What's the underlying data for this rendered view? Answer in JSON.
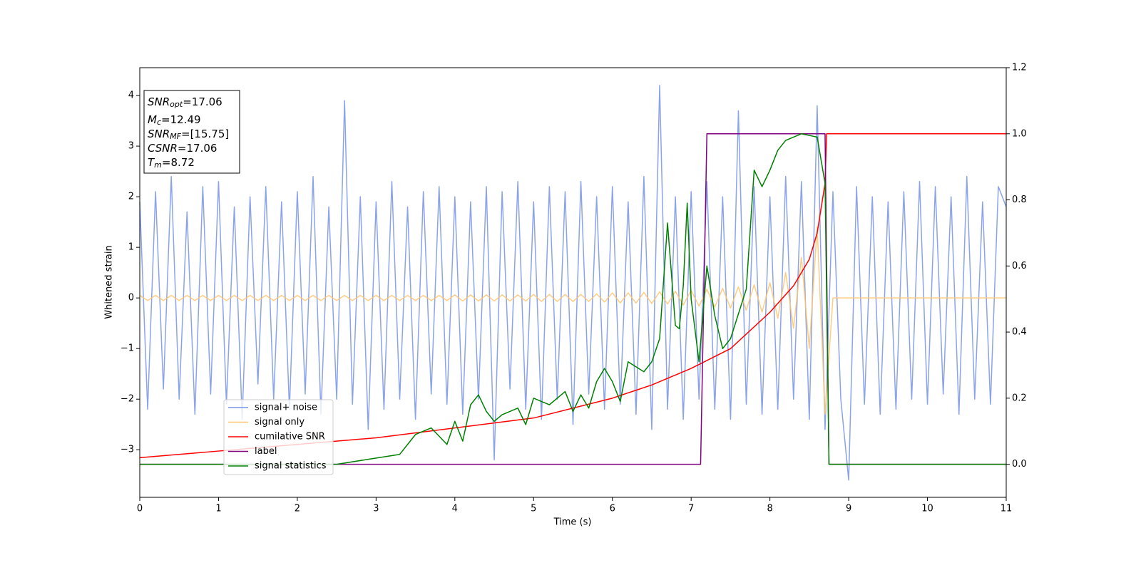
{
  "chart_data": {
    "type": "line",
    "xlabel": "Time (s)",
    "ylabel": "Whitened strain",
    "xlim": [
      0,
      11
    ],
    "xticks": [
      0,
      1,
      2,
      3,
      4,
      5,
      6,
      7,
      8,
      9,
      10,
      11
    ],
    "ylim": [
      -3.94,
      4.55
    ],
    "yticks": [
      {
        "value": -3,
        "label": "−3"
      },
      {
        "value": -2,
        "label": "−2"
      },
      {
        "value": -1,
        "label": "−1"
      },
      0,
      1,
      2,
      3,
      4
    ],
    "y2lim": [
      -0.1,
      1.2
    ],
    "y2ticks": [
      {
        "value": 0,
        "label": "0.0"
      },
      0.2,
      0.4,
      0.6,
      0.8,
      {
        "value": 1,
        "label": "1.0"
      },
      1.2
    ],
    "legend": "lower left",
    "annotations": [
      {
        "text": "SNR",
        "sub": "opt",
        "value": "=17.06"
      },
      {
        "text": "M",
        "sub": "c",
        "value": "=12.49"
      },
      {
        "text": "SNR",
        "sub": "MF",
        "value": "=[15.75]"
      },
      {
        "text": "CSNR",
        "value": "=17.06"
      },
      {
        "text": "T",
        "sub": "m",
        "value": "=8.72"
      }
    ],
    "x": [
      0,
      0.1,
      0.2,
      0.3,
      0.4,
      0.5,
      0.6,
      0.7,
      0.8,
      0.9,
      1,
      1.1,
      1.2,
      1.3,
      1.4,
      1.5,
      1.6,
      1.7,
      1.8,
      1.9,
      2,
      2.1,
      2.2,
      2.3,
      2.4,
      2.5,
      2.6,
      2.7,
      2.8,
      2.9,
      3,
      3.1,
      3.2,
      3.3,
      3.4,
      3.5,
      3.6,
      3.7,
      3.8,
      3.9,
      4,
      4.1,
      4.2,
      4.3,
      4.4,
      4.5,
      4.6,
      4.7,
      4.8,
      4.9,
      5,
      5.1,
      5.2,
      5.3,
      5.4,
      5.5,
      5.6,
      5.7,
      5.8,
      5.9,
      6,
      6.1,
      6.2,
      6.3,
      6.4,
      6.5,
      6.6,
      6.7,
      6.8,
      6.9,
      7,
      7.1,
      7.2,
      7.3,
      7.4,
      7.5,
      7.6,
      7.7,
      7.8,
      7.9,
      8,
      8.1,
      8.2,
      8.3,
      8.4,
      8.5,
      8.6,
      8.7,
      8.8,
      8.9,
      9,
      9.1,
      9.2,
      9.3,
      9.4,
      9.5,
      9.6,
      9.7,
      9.8,
      9.9,
      10,
      10.1,
      10.2,
      10.3,
      10.4,
      10.5,
      10.6,
      10.7,
      10.8,
      10.9,
      11
    ],
    "series": [
      {
        "name": "signal+ noise",
        "color": "#7793e8",
        "values": [
          1.9,
          -2.2,
          2.1,
          -1.8,
          2.4,
          -2.0,
          1.7,
          -2.3,
          2.2,
          -1.9,
          2.3,
          -2.1,
          1.8,
          -2.4,
          2.0,
          -1.7,
          2.2,
          -2.0,
          1.9,
          -2.2,
          2.1,
          -1.9,
          2.4,
          -2.3,
          1.8,
          -2.0,
          3.9,
          -2.1,
          2.0,
          -2.6,
          1.9,
          -2.2,
          2.3,
          -2.0,
          1.8,
          -2.4,
          2.1,
          -1.9,
          2.2,
          -2.1,
          2.0,
          -2.3,
          1.9,
          -2.0,
          2.2,
          -3.2,
          2.1,
          -1.8,
          2.3,
          -2.2,
          1.9,
          -2.4,
          2.2,
          -2.0,
          2.1,
          -2.5,
          2.3,
          -1.9,
          2.0,
          -2.2,
          2.2,
          -2.1,
          1.9,
          -2.3,
          2.4,
          -2.6,
          4.2,
          -2.2,
          2.0,
          -2.4,
          2.1,
          -2.0,
          2.3,
          -2.2,
          2.0,
          -2.4,
          3.7,
          -2.1,
          2.2,
          -2.3,
          2.0,
          -2.2,
          2.4,
          -2.0,
          2.3,
          -2.4,
          3.8,
          -2.6,
          2.1,
          -2.0,
          -3.6,
          2.2,
          -2.1,
          2.0,
          -2.3,
          1.9,
          -2.2,
          2.1,
          -2.0,
          2.3,
          -2.1,
          2.2,
          -1.9,
          2.0,
          -2.3,
          2.4,
          -2.0,
          1.9,
          -2.1,
          2.2,
          1.8
        ]
      },
      {
        "name": "signal only",
        "color": "#ffc46b",
        "values": [
          0.05,
          -0.05,
          0.05,
          -0.05,
          0.05,
          -0.05,
          0.05,
          -0.05,
          0.05,
          -0.05,
          0.05,
          -0.05,
          0.05,
          -0.05,
          0.05,
          -0.05,
          0.05,
          -0.05,
          0.05,
          -0.05,
          0.05,
          -0.05,
          0.05,
          -0.05,
          0.05,
          -0.05,
          0.05,
          -0.05,
          0.05,
          -0.05,
          0.05,
          -0.05,
          0.05,
          -0.05,
          0.05,
          -0.05,
          0.05,
          -0.05,
          0.05,
          -0.05,
          0.06,
          -0.06,
          0.06,
          -0.06,
          0.06,
          -0.06,
          0.06,
          -0.06,
          0.06,
          -0.06,
          0.07,
          -0.07,
          0.07,
          -0.07,
          0.07,
          -0.07,
          0.07,
          -0.07,
          0.08,
          -0.08,
          0.1,
          -0.1,
          0.1,
          -0.1,
          0.11,
          -0.11,
          0.12,
          -0.12,
          0.13,
          -0.14,
          0.15,
          -0.16,
          0.17,
          -0.18,
          0.19,
          -0.2,
          0.22,
          -0.24,
          0.26,
          -0.28,
          0.3,
          -0.4,
          0.5,
          -0.6,
          0.8,
          -1.0,
          1.4,
          -2.3,
          0,
          0,
          0,
          0,
          0,
          0,
          0,
          0,
          0,
          0,
          0,
          0,
          0,
          0,
          0,
          0,
          0,
          0,
          0,
          0,
          0,
          0,
          0
        ]
      },
      {
        "name": "cumilative SNR",
        "color": "#ff0000",
        "axis": "y2",
        "x": [
          0,
          1,
          2,
          3,
          4,
          5,
          6,
          6.5,
          7,
          7.5,
          8,
          8.3,
          8.5,
          8.6,
          8.7,
          8.72,
          11
        ],
        "values": [
          0.02,
          0.04,
          0.06,
          0.08,
          0.11,
          0.14,
          0.2,
          0.24,
          0.29,
          0.35,
          0.46,
          0.54,
          0.62,
          0.7,
          0.85,
          1.0,
          1.0
        ]
      },
      {
        "name": "label",
        "color": "#800080",
        "axis": "y2",
        "x": [
          0,
          7.12,
          7.2,
          8.7,
          8.75,
          11
        ],
        "values": [
          0,
          0,
          1,
          1,
          0,
          0
        ]
      },
      {
        "name": "signal statistics",
        "color": "#008000",
        "axis": "y2",
        "x": [
          0,
          2.5,
          2.9,
          3.3,
          3.5,
          3.7,
          3.9,
          4.0,
          4.1,
          4.2,
          4.3,
          4.4,
          4.5,
          4.6,
          4.8,
          4.9,
          5.0,
          5.2,
          5.4,
          5.5,
          5.6,
          5.7,
          5.8,
          5.9,
          6.0,
          6.1,
          6.2,
          6.4,
          6.5,
          6.6,
          6.7,
          6.8,
          6.85,
          6.9,
          6.95,
          7.0,
          7.1,
          7.2,
          7.3,
          7.4,
          7.5,
          7.7,
          7.8,
          7.9,
          8.0,
          8.1,
          8.2,
          8.4,
          8.6,
          8.7,
          8.75,
          11
        ],
        "values": [
          0,
          0,
          0.015,
          0.03,
          0.09,
          0.11,
          0.06,
          0.13,
          0.07,
          0.18,
          0.21,
          0.16,
          0.13,
          0.15,
          0.17,
          0.12,
          0.2,
          0.18,
          0.22,
          0.16,
          0.21,
          0.17,
          0.25,
          0.29,
          0.25,
          0.19,
          0.31,
          0.28,
          0.31,
          0.38,
          0.73,
          0.42,
          0.41,
          0.54,
          0.79,
          0.5,
          0.31,
          0.6,
          0.45,
          0.35,
          0.38,
          0.53,
          0.89,
          0.84,
          0.89,
          0.95,
          0.98,
          1.0,
          0.99,
          0.85,
          0,
          0
        ]
      }
    ]
  }
}
